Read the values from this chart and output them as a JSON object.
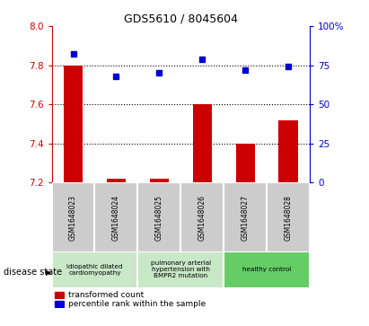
{
  "title": "GDS5610 / 8045604",
  "samples": [
    "GSM1648023",
    "GSM1648024",
    "GSM1648025",
    "GSM1648026",
    "GSM1648027",
    "GSM1648028"
  ],
  "red_values": [
    7.8,
    7.22,
    7.22,
    7.6,
    7.4,
    7.52
  ],
  "blue_values": [
    82,
    68,
    70,
    79,
    72,
    74
  ],
  "ylim_left": [
    7.2,
    8.0
  ],
  "ylim_right": [
    0,
    100
  ],
  "yticks_left": [
    7.2,
    7.4,
    7.6,
    7.8,
    8.0
  ],
  "yticks_right": [
    0,
    25,
    50,
    75,
    100
  ],
  "ytick_labels_right": [
    "0",
    "25",
    "50",
    "75",
    "100%"
  ],
  "red_color": "#cc0000",
  "blue_color": "#0000cc",
  "bar_bottom": 7.2,
  "legend_red": "transformed count",
  "legend_blue": "percentile rank within the sample",
  "disease_state_label": "disease state",
  "group_defs": [
    [
      0,
      1,
      "idiopathic dilated\ncardiomyopathy",
      "#c8e8c8"
    ],
    [
      2,
      3,
      "pulmonary arterial\nhypertension with\nBMPR2 mutation",
      "#c8e8c8"
    ],
    [
      4,
      5,
      "healthy control",
      "#66cc66"
    ]
  ]
}
